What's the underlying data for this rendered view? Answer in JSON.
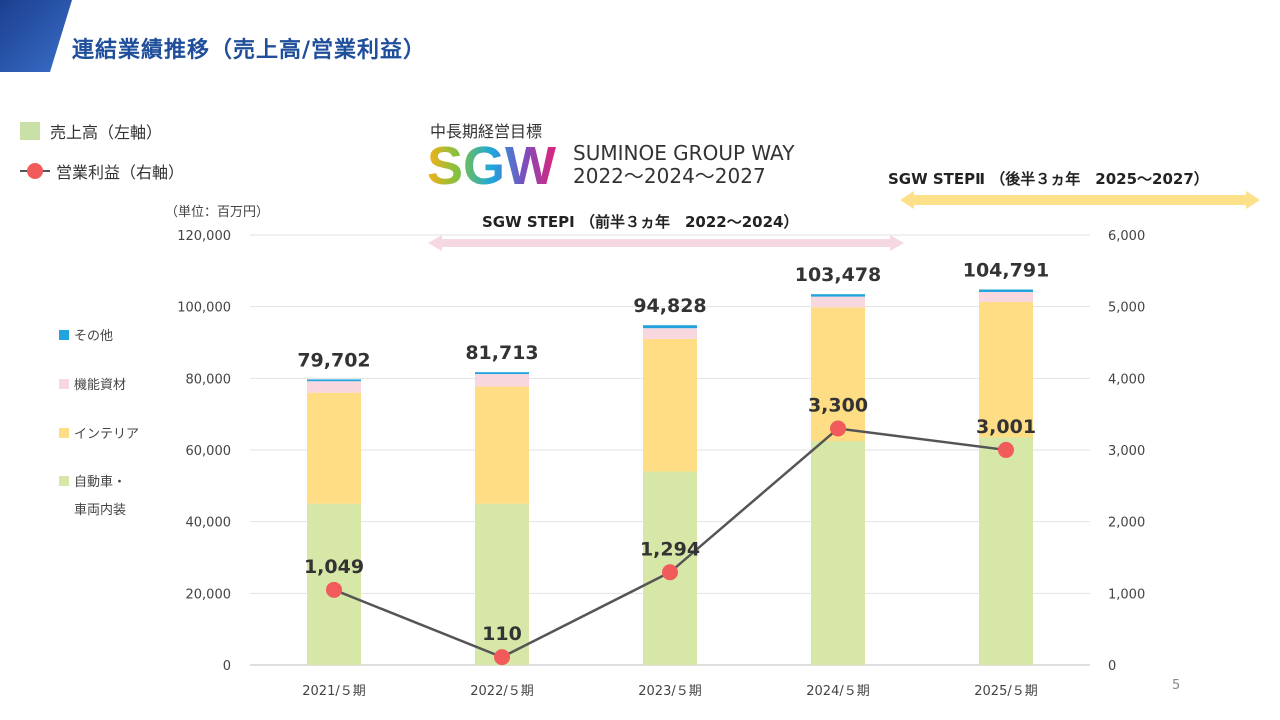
{
  "header": {
    "title": "連結業績推移（売上高/営業利益）"
  },
  "legend": {
    "sales": "売上高（左軸）",
    "profit": "営業利益（右軸）"
  },
  "unit_label": "（単位：百万円）",
  "goal": {
    "label": "中長期経営目標",
    "logo_text": "SGW",
    "name": "SUMINOE GROUP WAY",
    "years": "2022～2024～2027"
  },
  "steps": {
    "step1": "SGW STEPⅠ （前半３ヵ年　2022～2024）",
    "step2": "SGW STEPⅡ （後半３ヵ年　2025～2027）"
  },
  "page_number": "5",
  "colors": {
    "automotive": "#d6e7a8",
    "interior": "#fedd85",
    "functional": "#f8d7df",
    "other": "#22a3dd",
    "profit": "#f15b5b",
    "line": "#555555",
    "highlight": "#ee5a5a",
    "title": "#1f4e9a"
  },
  "chart_data": {
    "type": "bar",
    "categories": [
      "2021/５期",
      "2022/５期",
      "2023/５期",
      "2024/５期",
      "2025/５期"
    ],
    "series": [
      {
        "name": "自動車・車両内装",
        "values": [
          45000,
          45000,
          54000,
          62500,
          63500
        ]
      },
      {
        "name": "インテリア",
        "values": [
          31000,
          32700,
          37000,
          37300,
          37800
        ]
      },
      {
        "name": "機能資材",
        "values": [
          3200,
          3500,
          3000,
          3000,
          2800
        ]
      },
      {
        "name": "その他",
        "values": [
          502,
          513,
          828,
          678,
          691
        ]
      }
    ],
    "totals": [
      79702,
      81713,
      94828,
      103478,
      104791
    ],
    "total_labels": [
      "79,702",
      "81,713",
      "94,828",
      "103,478",
      "104,791"
    ],
    "line_series": {
      "name": "営業利益（右軸）",
      "values": [
        1049,
        110,
        1294,
        3300,
        3001
      ],
      "labels": [
        "1,049",
        "110",
        "1,294",
        "3,300",
        "3,001"
      ]
    },
    "left_axis": {
      "ylim": [
        0,
        120000
      ],
      "ticks": [
        "0",
        "20,000",
        "40,000",
        "60,000",
        "80,000",
        "100,000",
        "120,000"
      ]
    },
    "right_axis": {
      "ylim": [
        0,
        6000
      ],
      "ticks": [
        "0",
        "1,000",
        "2,000",
        "3,000",
        "4,000",
        "5,000",
        "6,000"
      ]
    },
    "segment_legend": [
      "その他",
      "機能資材",
      "インテリア",
      "自動車・",
      "車両内装"
    ],
    "grid": true,
    "highlight_last": true
  }
}
